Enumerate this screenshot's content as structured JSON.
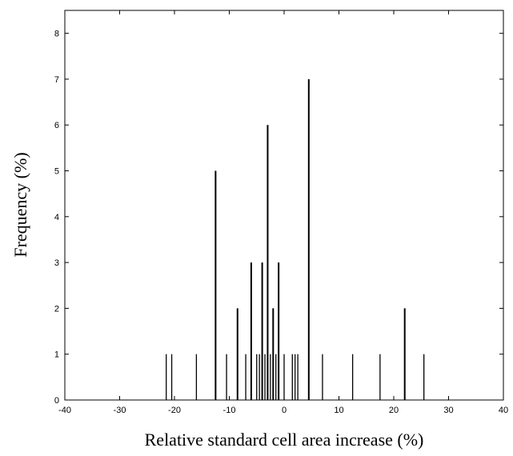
{
  "chart_data": {
    "type": "bar",
    "title": "",
    "xlabel": "Relative standard cell area increase (%)",
    "ylabel": "Frequency (%)",
    "xlim": [
      -40,
      40
    ],
    "ylim": [
      0,
      8.5
    ],
    "xticks": [
      -40,
      -30,
      -20,
      -10,
      0,
      10,
      20,
      30,
      40
    ],
    "yticks": [
      0,
      1,
      2,
      3,
      4,
      5,
      6,
      7,
      8
    ],
    "grid": false,
    "bar_color": "#000000",
    "series": [
      {
        "x": [
          -21.5,
          -20.5,
          -16,
          -12.5,
          -10.5,
          -8.5,
          -7,
          -6,
          -5,
          -4.5,
          -4,
          -3.5,
          -3,
          -2.5,
          -2,
          -1.5,
          -1,
          0,
          1.5,
          2,
          2.5,
          4.5,
          7,
          12.5,
          17.5,
          22,
          25.5
        ],
        "values": [
          1,
          1,
          1,
          5,
          1,
          2,
          1,
          3,
          1,
          1,
          3,
          1,
          6,
          1,
          2,
          1,
          3,
          1,
          1,
          1,
          1,
          7,
          1,
          1,
          1,
          2,
          1
        ]
      }
    ]
  }
}
